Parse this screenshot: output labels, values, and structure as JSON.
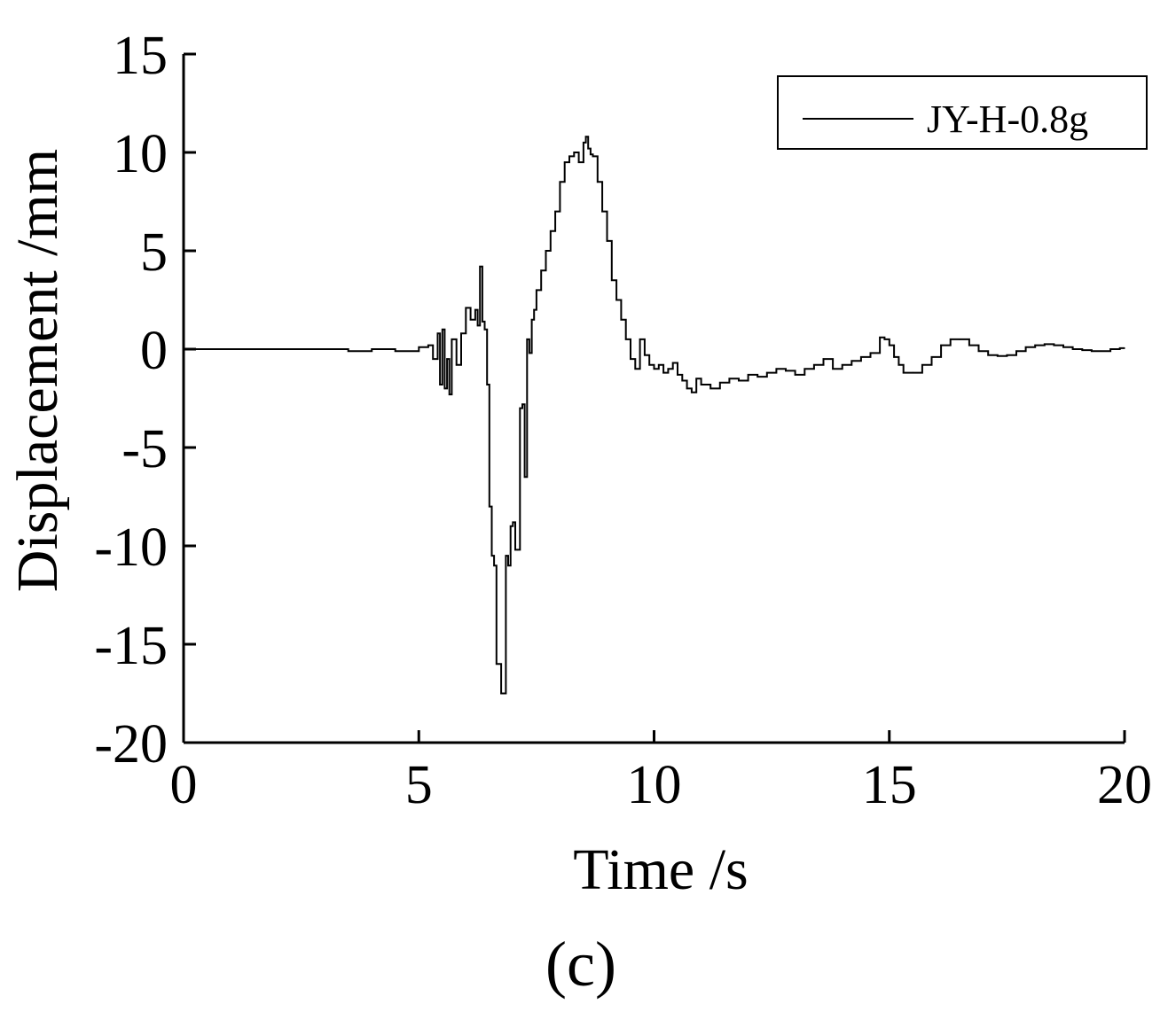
{
  "figure": {
    "panel_label": "(c)"
  },
  "chart_data": {
    "type": "line",
    "xlabel": "Time /s",
    "ylabel": "Displacement /mm",
    "xlim": [
      0,
      20
    ],
    "ylim": [
      -20,
      15
    ],
    "xticks": [
      0,
      5,
      10,
      15,
      20
    ],
    "yticks": [
      15,
      10,
      5,
      0,
      -5,
      -10,
      -15,
      -20
    ],
    "xtick_labels": [
      "0",
      "5",
      "10",
      "15",
      "20"
    ],
    "ytick_labels": [
      "15",
      "10",
      "5",
      "0",
      "-5",
      "-10",
      "-15",
      "-20"
    ],
    "grid": false,
    "legend": {
      "position": "top-right",
      "entries": [
        "JY-H-0.8g"
      ]
    },
    "series": [
      {
        "name": "JY-H-0.8g",
        "color": "#000000",
        "x": [
          0,
          3.0,
          3.5,
          4.0,
          4.5,
          5.0,
          5.2,
          5.3,
          5.4,
          5.45,
          5.5,
          5.55,
          5.6,
          5.65,
          5.7,
          5.8,
          5.9,
          6.0,
          6.1,
          6.2,
          6.25,
          6.3,
          6.35,
          6.4,
          6.45,
          6.5,
          6.55,
          6.6,
          6.65,
          6.7,
          6.75,
          6.8,
          6.85,
          6.9,
          6.95,
          7.0,
          7.05,
          7.1,
          7.15,
          7.2,
          7.25,
          7.3,
          7.35,
          7.4,
          7.45,
          7.5,
          7.6,
          7.7,
          7.8,
          7.9,
          8.0,
          8.1,
          8.2,
          8.3,
          8.4,
          8.5,
          8.55,
          8.6,
          8.65,
          8.7,
          8.8,
          8.9,
          9.0,
          9.1,
          9.2,
          9.3,
          9.4,
          9.5,
          9.6,
          9.7,
          9.8,
          9.9,
          10.0,
          10.1,
          10.2,
          10.3,
          10.4,
          10.5,
          10.6,
          10.7,
          10.8,
          10.9,
          11.0,
          11.2,
          11.4,
          11.6,
          11.8,
          12.0,
          12.2,
          12.4,
          12.6,
          12.8,
          13.0,
          13.2,
          13.4,
          13.6,
          13.8,
          14.0,
          14.2,
          14.4,
          14.6,
          14.8,
          14.9,
          15.0,
          15.1,
          15.2,
          15.3,
          15.5,
          15.7,
          15.9,
          16.1,
          16.3,
          16.5,
          16.7,
          16.9,
          17.1,
          17.3,
          17.5,
          17.7,
          17.9,
          18.1,
          18.3,
          18.5,
          18.7,
          18.9,
          19.1,
          19.3,
          19.5,
          19.7,
          19.9,
          20.0
        ],
        "y": [
          0,
          0,
          -0.1,
          0.0,
          -0.1,
          0.1,
          0.2,
          -0.5,
          0.8,
          -1.8,
          1.0,
          -2.0,
          -0.5,
          -2.3,
          0.5,
          -0.8,
          0.8,
          2.1,
          1.5,
          2.0,
          1.2,
          4.2,
          1.4,
          1.0,
          -1.8,
          -8.0,
          -10.5,
          -11.0,
          -16.0,
          -16.0,
          -17.5,
          -17.5,
          -10.5,
          -11.0,
          -9.0,
          -8.8,
          -10.2,
          -10.2,
          -3.0,
          -2.8,
          -6.5,
          0.5,
          -0.2,
          1.5,
          2.0,
          3.0,
          4.0,
          5.0,
          6.0,
          7.0,
          8.5,
          9.5,
          9.8,
          10.0,
          9.5,
          10.5,
          10.8,
          10.2,
          9.9,
          9.8,
          8.5,
          7.0,
          5.5,
          3.5,
          2.5,
          1.5,
          0.5,
          -0.5,
          -1.0,
          0.5,
          -0.3,
          -0.8,
          -1.0,
          -0.8,
          -1.2,
          -1.0,
          -0.7,
          -1.3,
          -1.6,
          -2.0,
          -2.2,
          -1.5,
          -1.8,
          -2.0,
          -1.7,
          -1.5,
          -1.6,
          -1.3,
          -1.4,
          -1.2,
          -1.0,
          -1.1,
          -1.3,
          -1.0,
          -0.8,
          -0.5,
          -1.0,
          -0.8,
          -0.6,
          -0.4,
          -0.2,
          0.6,
          0.5,
          0.2,
          -0.4,
          -0.8,
          -1.2,
          -1.2,
          -0.8,
          -0.4,
          0.2,
          0.5,
          0.5,
          0.2,
          -0.1,
          -0.3,
          -0.35,
          -0.3,
          -0.1,
          0.1,
          0.2,
          0.25,
          0.2,
          0.1,
          0.0,
          -0.05,
          -0.1,
          -0.1,
          0.0,
          0.05,
          0.05
        ]
      }
    ]
  }
}
